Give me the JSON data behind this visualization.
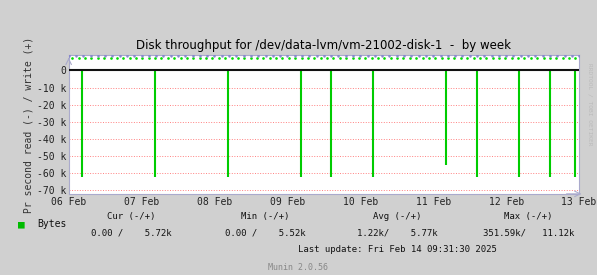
{
  "title": "Disk throughput for /dev/data-lvm/vm-21002-disk-1  -  by week",
  "ylabel": "Pr second read (-) / write (+)",
  "background_color": "#d0d0d0",
  "plot_bg_color": "#ffffff",
  "grid_color": "#ff8080",
  "border_color": "#aaaacc",
  "spike_color": "#00cc00",
  "zero_line_color": "#111111",
  "top_marker_color": "#00dd00",
  "top_tick_color": "#8888cc",
  "ylim": [
    -72000,
    9000
  ],
  "yticks": [
    0,
    -10000,
    -20000,
    -30000,
    -40000,
    -50000,
    -60000,
    -70000
  ],
  "ytick_labels": [
    "0",
    "-10 k",
    "-20 k",
    "-30 k",
    "-40 k",
    "-50 k",
    "-60 k",
    "-70 k"
  ],
  "xtick_positions": [
    0,
    1,
    2,
    3,
    4,
    5,
    6,
    7
  ],
  "xticklabels": [
    "06 Feb",
    "07 Feb",
    "08 Feb",
    "09 Feb",
    "10 Feb",
    "11 Feb",
    "12 Feb",
    "13 Feb"
  ],
  "watermark": "RRDTOOL / TOBI OETIKER",
  "legend_label": "Bytes",
  "legend_color": "#00bb00",
  "munin_label": "Munin 2.0.56",
  "lastupdate": "Last update: Fri Feb 14 09:31:30 2025",
  "spike_positions": [
    0.18,
    1.18,
    2.18,
    3.18,
    3.6,
    4.18,
    5.18,
    5.6,
    6.18,
    6.6,
    6.95
  ],
  "spike_depths": [
    -62000,
    -62000,
    -62000,
    -62000,
    -62000,
    -62000,
    -55000,
    -62000,
    -62000,
    -62000,
    -62000
  ],
  "cur_label": "Cur (-/+)",
  "cur_val": "0.00 /    5.72k",
  "min_label": "Min (-/+)",
  "min_val": "0.00 /    5.52k",
  "avg_label": "Avg (-/+)",
  "avg_val": "1.22k/    5.77k",
  "max_label": "Max (-/+)",
  "max_val": "351.59k/   11.12k"
}
